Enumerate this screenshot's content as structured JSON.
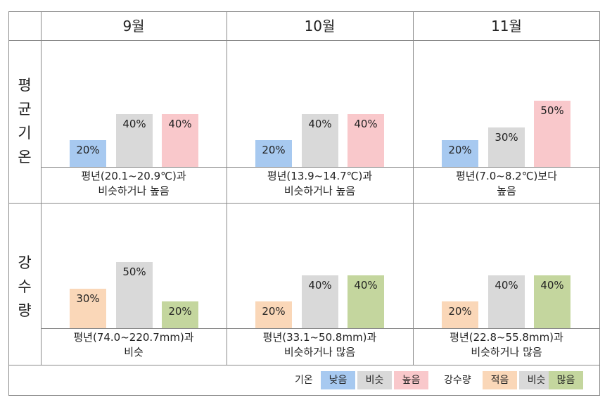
{
  "columns": [
    "9월",
    "10월",
    "11월"
  ],
  "rows": [
    {
      "label": "평균기온",
      "chars": [
        "평",
        "균",
        "기",
        "온"
      ]
    },
    {
      "label": "강수량",
      "chars": [
        "강",
        "수",
        "량"
      ]
    }
  ],
  "colors": {
    "low_temp": "#a7c9f0",
    "similar": "#d9d9d9",
    "high_temp": "#f9c8cb",
    "low_rain": "#fad7b8",
    "high_rain": "#c4d69e"
  },
  "chart_data": [
    {
      "type": "bar",
      "row": "평균기온",
      "month": "9월",
      "categories": [
        "낮음",
        "비슷",
        "높음"
      ],
      "values": [
        20,
        40,
        40
      ],
      "labels": [
        "20%",
        "40%",
        "40%"
      ],
      "ylim": [
        0,
        60
      ],
      "description": [
        "평년(20.1~20.9℃)과",
        "비슷하거나 높음"
      ]
    },
    {
      "type": "bar",
      "row": "평균기온",
      "month": "10월",
      "categories": [
        "낮음",
        "비슷",
        "높음"
      ],
      "values": [
        20,
        40,
        40
      ],
      "labels": [
        "20%",
        "40%",
        "40%"
      ],
      "ylim": [
        0,
        60
      ],
      "description": [
        "평년(13.9~14.7℃)과",
        "비슷하거나 높음"
      ]
    },
    {
      "type": "bar",
      "row": "평균기온",
      "month": "11월",
      "categories": [
        "낮음",
        "비슷",
        "높음"
      ],
      "values": [
        20,
        30,
        50
      ],
      "labels": [
        "20%",
        "30%",
        "50%"
      ],
      "ylim": [
        0,
        60
      ],
      "description": [
        "평년(7.0~8.2℃)보다",
        "높음"
      ]
    },
    {
      "type": "bar",
      "row": "강수량",
      "month": "9월",
      "categories": [
        "적음",
        "비슷",
        "많음"
      ],
      "values": [
        30,
        50,
        20
      ],
      "labels": [
        "30%",
        "50%",
        "20%"
      ],
      "ylim": [
        0,
        60
      ],
      "description": [
        "평년(74.0~220.7mm)과",
        "비슷"
      ]
    },
    {
      "type": "bar",
      "row": "강수량",
      "month": "10월",
      "categories": [
        "적음",
        "비슷",
        "많음"
      ],
      "values": [
        20,
        40,
        40
      ],
      "labels": [
        "20%",
        "40%",
        "40%"
      ],
      "ylim": [
        0,
        60
      ],
      "description": [
        "평년(33.1~50.8mm)과",
        "비슷하거나 많음"
      ]
    },
    {
      "type": "bar",
      "row": "강수량",
      "month": "11월",
      "categories": [
        "적음",
        "비슷",
        "많음"
      ],
      "values": [
        20,
        40,
        40
      ],
      "labels": [
        "20%",
        "40%",
        "40%"
      ],
      "ylim": [
        0,
        60
      ],
      "description": [
        "평년(22.8~55.8mm)과",
        "비슷하거나 많음"
      ]
    }
  ],
  "legend": {
    "temp_title": "기온",
    "temp_items": [
      "낮음",
      "비슷",
      "높음"
    ],
    "rain_title": "강수량",
    "rain_items": [
      "적음",
      "비슷",
      "많음"
    ]
  }
}
